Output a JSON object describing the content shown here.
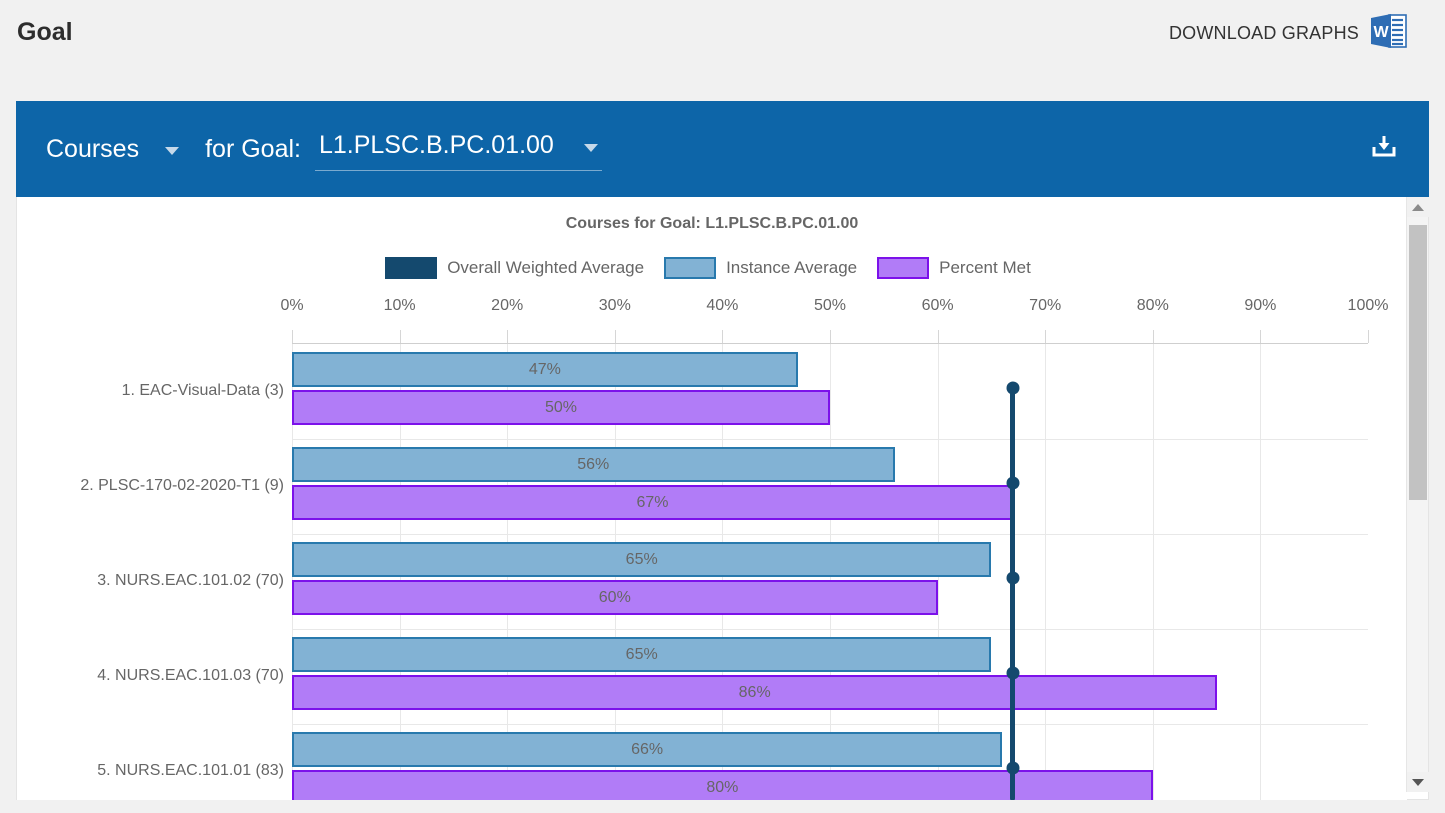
{
  "page": {
    "title": "Goal",
    "download_graphs_label": "DOWNLOAD GRAPHS"
  },
  "panel": {
    "entity_label": "Courses",
    "for_label": "for Goal:",
    "goal_value": "L1.PLSC.B.PC.01.00",
    "header_color": "#0d65a8"
  },
  "chart_data": {
    "type": "bar",
    "orientation": "horizontal",
    "title": "Courses for Goal: L1.PLSC.B.PC.01.00",
    "legend_position": "top",
    "grid": true,
    "xlim": [
      0,
      100
    ],
    "x_ticks": [
      "0%",
      "10%",
      "20%",
      "30%",
      "40%",
      "50%",
      "60%",
      "70%",
      "80%",
      "90%",
      "100%"
    ],
    "legend": [
      {
        "name": "Overall Weighted Average",
        "fill": "#14496e",
        "border": "#14496e"
      },
      {
        "name": "Instance Average",
        "fill": "#82b2d4",
        "border": "#2879ad"
      },
      {
        "name": "Percent Met",
        "fill": "#b17cf7",
        "border": "#7c11ea"
      }
    ],
    "categories": [
      "1. EAC-Visual-Data (3)",
      "2. PLSC-170-02-2020-T1 (9)",
      "3. NURS.EAC.101.02 (70)",
      "4. NURS.EAC.101.03 (70)",
      "5. NURS.EAC.101.01 (83)"
    ],
    "series": [
      {
        "name": "Instance Average",
        "values": [
          47,
          56,
          65,
          65,
          66
        ]
      },
      {
        "name": "Percent Met",
        "values": [
          50,
          67,
          60,
          86,
          80
        ]
      }
    ],
    "overall_weighted_average": 67,
    "value_suffix": "%"
  }
}
